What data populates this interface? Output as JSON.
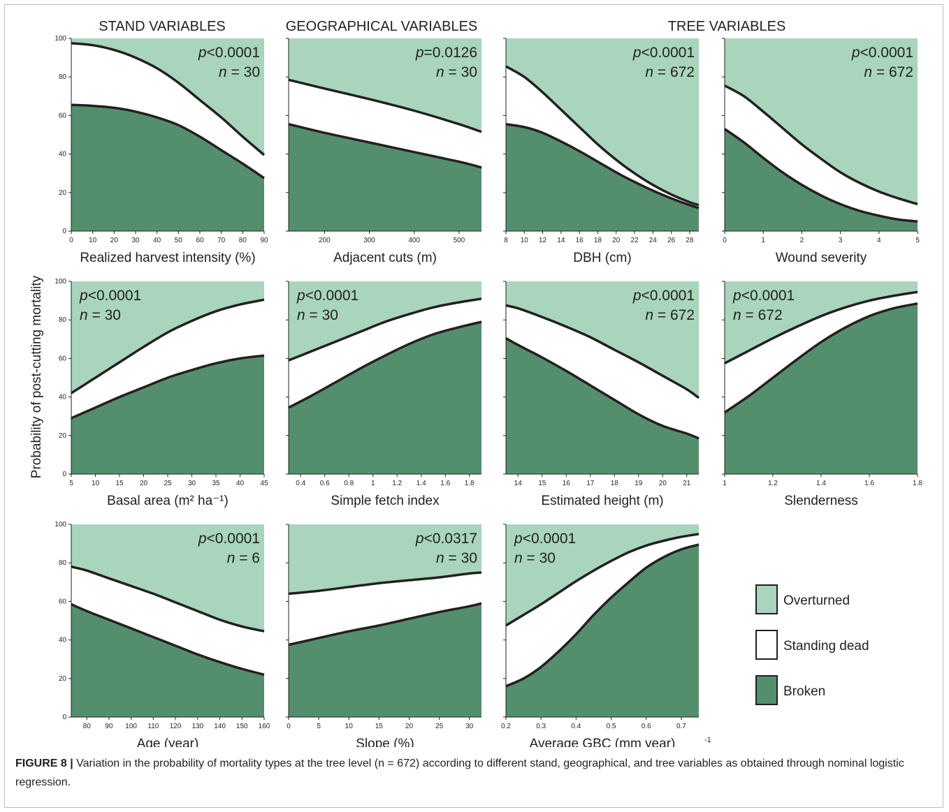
{
  "figure": {
    "group_titles": [
      "STAND VARIABLES",
      "GEOGRAPHICAL VARIABLES",
      "TREE VARIABLES"
    ],
    "y_axis_label": "Probability of post-cutting mortality",
    "colors": {
      "overturned": "#a8d5bc",
      "standing_dead": "#ffffff",
      "broken": "#548f6d",
      "outline": "#231f20"
    }
  },
  "legend": [
    {
      "key": "overturned",
      "label": "Overturned"
    },
    {
      "key": "standing_dead",
      "label": "Standing dead"
    },
    {
      "key": "broken",
      "label": "Broken"
    }
  ],
  "caption": {
    "label": "FIGURE 8 |",
    "text": "Variation in the probability of mortality types at the tree level (n = 672) according to different stand, geographical, and tree variables as obtained through nominal logistic regression."
  },
  "chart_data": [
    {
      "type": "area",
      "xlabel": "Realized harvest intensity (%)",
      "p_text": "<0.0001",
      "n_text": "n = 30",
      "xlim": [
        0,
        90
      ],
      "xticks": [
        0,
        10,
        20,
        30,
        40,
        50,
        60,
        70,
        80,
        90
      ],
      "ylim": [
        0,
        100
      ],
      "yticks": [
        0,
        20,
        40,
        60,
        80,
        100
      ],
      "x": [
        0,
        10,
        20,
        30,
        40,
        50,
        60,
        70,
        80,
        90
      ],
      "broken": [
        65.5,
        65,
        64,
        62,
        59,
        55,
        49,
        42,
        35,
        27.5
      ],
      "upper": [
        97.5,
        96.5,
        94,
        90,
        84.5,
        77,
        68,
        59,
        49,
        39.5
      ]
    },
    {
      "type": "area",
      "xlabel": "Adjacent cuts (m)",
      "p_text": "=0.0126",
      "n_text": "n = 30",
      "xlim": [
        120,
        550
      ],
      "xticks": [
        200,
        300,
        400,
        500
      ],
      "ylim": [
        0,
        100
      ],
      "yticks": [
        0,
        20,
        40,
        60,
        80,
        100
      ],
      "x": [
        120,
        200,
        300,
        400,
        500,
        550
      ],
      "broken": [
        55.5,
        51,
        46,
        41,
        36,
        33
      ],
      "upper": [
        78.5,
        74,
        68.5,
        62.5,
        55.5,
        51.5
      ]
    },
    {
      "type": "area",
      "xlabel": "DBH (cm)",
      "p_text": "<0.0001",
      "n_text": "n = 672",
      "xlim": [
        8,
        29
      ],
      "xticks": [
        8,
        10,
        12,
        14,
        16,
        18,
        20,
        22,
        24,
        26,
        28
      ],
      "ylim": [
        0,
        100
      ],
      "yticks": [
        0,
        20,
        40,
        60,
        80,
        100
      ],
      "x": [
        8,
        10,
        12,
        14,
        16,
        18,
        20,
        22,
        24,
        26,
        28,
        29
      ],
      "broken": [
        55.5,
        54,
        51,
        46.5,
        41.5,
        36,
        30.5,
        25.5,
        21,
        17,
        13.5,
        12
      ],
      "upper": [
        85.5,
        80,
        72,
        63,
        54,
        45,
        37,
        30,
        24,
        19,
        15,
        13.5
      ]
    },
    {
      "type": "area",
      "xlabel": "Wound severity",
      "p_text": "<0.0001",
      "n_text": "n = 672",
      "xlim": [
        0,
        5
      ],
      "xticks": [
        0,
        1,
        2,
        3,
        4,
        5
      ],
      "ylim": [
        0,
        100
      ],
      "yticks": [
        0,
        20,
        40,
        60,
        80,
        100
      ],
      "x": [
        0,
        0.5,
        1,
        1.5,
        2,
        2.5,
        3,
        3.5,
        4,
        4.5,
        5
      ],
      "broken": [
        53,
        46,
        38,
        30.5,
        24,
        18.5,
        14,
        10.5,
        8,
        6,
        5
      ],
      "upper": [
        75.5,
        70,
        62,
        53.5,
        45,
        37.5,
        30.5,
        25,
        20.5,
        17,
        14
      ]
    },
    {
      "type": "area",
      "xlabel": "Basal area (m² ha⁻¹)",
      "p_text": "<0.0001",
      "n_text": "n = 30",
      "xlim": [
        5,
        45
      ],
      "xticks": [
        5,
        10,
        15,
        20,
        25,
        30,
        35,
        40,
        45
      ],
      "ylim": [
        0,
        100
      ],
      "yticks": [
        0,
        20,
        40,
        60,
        80,
        100
      ],
      "x": [
        5,
        10,
        15,
        20,
        25,
        30,
        35,
        40,
        45
      ],
      "broken": [
        29,
        34.5,
        40,
        45,
        50,
        54,
        57.5,
        60,
        61.5
      ],
      "upper": [
        42,
        50,
        58,
        66,
        73.5,
        79.5,
        84.5,
        88,
        90.5
      ]
    },
    {
      "type": "area",
      "xlabel": "Simple fetch index",
      "p_text": "<0.0001",
      "n_text": "n = 30",
      "xlim": [
        0.3,
        1.9
      ],
      "xticks": [
        0.4,
        0.6,
        0.8,
        1,
        1.2,
        1.4,
        1.6,
        1.8
      ],
      "ylim": [
        0,
        100
      ],
      "yticks": [
        0,
        20,
        40,
        60,
        80,
        100
      ],
      "x": [
        0.3,
        0.5,
        0.7,
        0.9,
        1.1,
        1.3,
        1.5,
        1.7,
        1.9
      ],
      "broken": [
        34.5,
        41,
        48,
        55,
        61.5,
        67.5,
        72.5,
        76,
        79
      ],
      "upper": [
        59,
        64,
        69,
        74,
        79,
        83,
        86.5,
        89,
        91
      ]
    },
    {
      "type": "area",
      "xlabel": "Estimated height (m)",
      "p_text": "<0.0001",
      "n_text": "n = 672",
      "xlim": [
        13.5,
        21.5
      ],
      "xticks": [
        14,
        15,
        16,
        17,
        18,
        19,
        20,
        21
      ],
      "ylim": [
        0,
        100
      ],
      "yticks": [
        0,
        20,
        40,
        60,
        80,
        100
      ],
      "x": [
        13.5,
        14,
        15,
        16,
        17,
        18,
        19,
        20,
        21,
        21.5
      ],
      "broken": [
        70.5,
        67,
        60.5,
        53.5,
        46,
        38.5,
        31,
        25,
        21,
        18.5
      ],
      "upper": [
        87.5,
        86,
        81.5,
        76.5,
        71,
        64.5,
        58,
        51,
        44,
        39.5
      ]
    },
    {
      "type": "area",
      "xlabel": "Slenderness",
      "p_text": "<0.0001",
      "n_text": "n = 672",
      "xlim": [
        1,
        1.8
      ],
      "xticks": [
        1,
        1.2,
        1.4,
        1.6,
        1.8
      ],
      "ylim": [
        0,
        100
      ],
      "yticks": [
        0,
        20,
        40,
        60,
        80,
        100
      ],
      "x": [
        1,
        1.1,
        1.2,
        1.3,
        1.4,
        1.5,
        1.6,
        1.7,
        1.8
      ],
      "broken": [
        32,
        40.5,
        50,
        59.5,
        68.5,
        76,
        82,
        86,
        88.5
      ],
      "upper": [
        57.5,
        64,
        70.5,
        76.5,
        82,
        86.5,
        90,
        92.5,
        94.5
      ]
    },
    {
      "type": "area",
      "xlabel": "Age (year)",
      "p_text": "<0.0001",
      "n_text": "n = 6",
      "xlim": [
        73,
        160
      ],
      "xticks": [
        80,
        90,
        100,
        110,
        120,
        130,
        140,
        150,
        160
      ],
      "ylim": [
        0,
        100
      ],
      "yticks": [
        0,
        20,
        40,
        60,
        80,
        100
      ],
      "x": [
        73,
        80,
        90,
        100,
        110,
        120,
        130,
        140,
        150,
        160
      ],
      "broken": [
        58.5,
        55,
        50.5,
        46,
        41.5,
        37,
        32.5,
        28.5,
        25,
        22
      ],
      "upper": [
        78,
        76,
        72,
        68,
        64,
        59.5,
        55,
        50.5,
        47,
        44.5
      ]
    },
    {
      "type": "area",
      "xlabel": "Slope (%)",
      "p_text": "<0.0317",
      "n_text": "n = 30",
      "xlim": [
        0,
        32
      ],
      "xticks": [
        0,
        5,
        10,
        15,
        20,
        25,
        30
      ],
      "ylim": [
        0,
        100
      ],
      "yticks": [
        0,
        20,
        40,
        60,
        80,
        100
      ],
      "x": [
        0,
        5,
        10,
        15,
        20,
        25,
        30,
        32
      ],
      "broken": [
        37.5,
        41,
        44.5,
        47.5,
        51,
        54.5,
        57.5,
        59
      ],
      "upper": [
        64,
        65.5,
        67.5,
        69.5,
        71,
        72.5,
        74.5,
        75
      ]
    },
    {
      "type": "area",
      "xlabel": "Average GBC (mm year)",
      "p_text": "<0.0001",
      "n_text": "n = 30",
      "xlim": [
        0.2,
        0.75
      ],
      "xticks": [
        0.2,
        0.3,
        0.4,
        0.5,
        0.6,
        0.7
      ],
      "ylim": [
        0,
        100
      ],
      "yticks": [
        0,
        20,
        40,
        60,
        80,
        100
      ],
      "x": [
        0.2,
        0.25,
        0.3,
        0.35,
        0.4,
        0.45,
        0.5,
        0.55,
        0.6,
        0.65,
        0.7,
        0.75
      ],
      "broken": [
        16,
        20,
        26,
        34,
        43,
        53,
        62,
        70,
        77.5,
        83,
        87,
        89.5
      ],
      "upper": [
        47.5,
        53,
        58.5,
        64.5,
        70.5,
        76,
        81,
        85.5,
        89,
        91.5,
        93.5,
        95
      ]
    }
  ]
}
